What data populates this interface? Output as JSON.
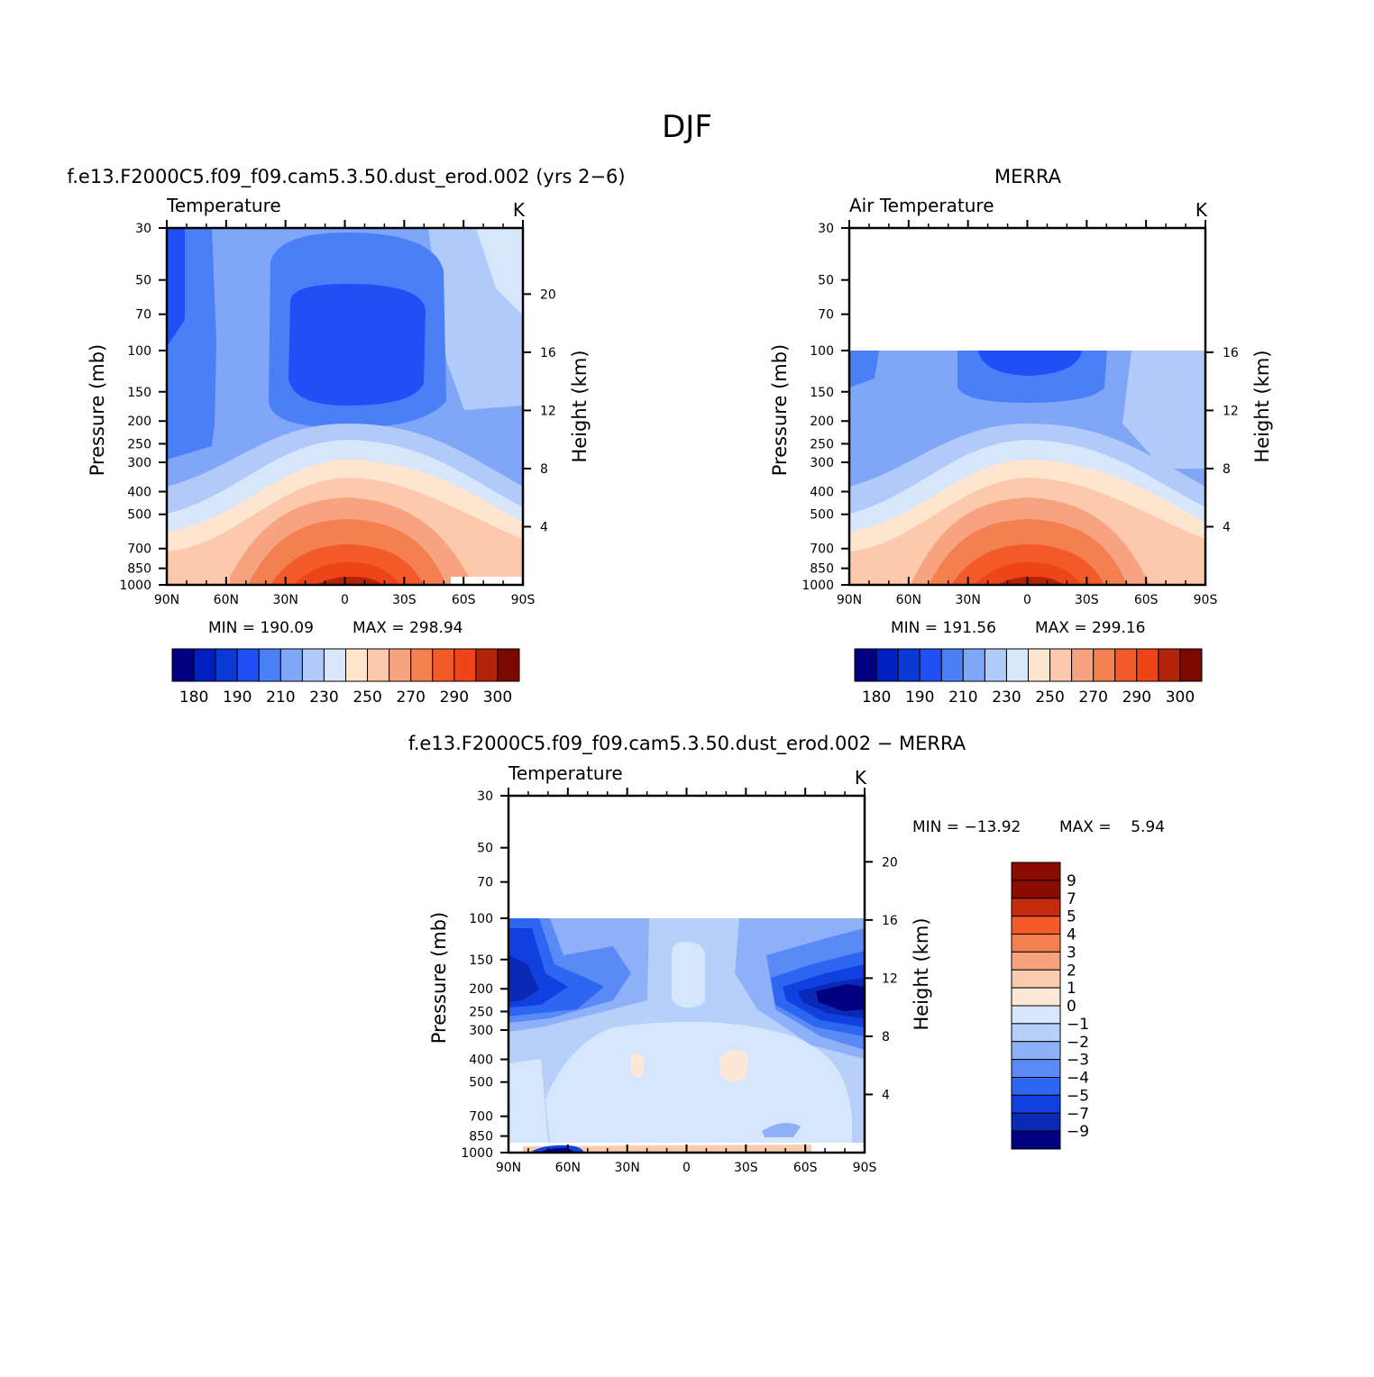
{
  "title": "DJF",
  "colors": {
    "levels": [
      "#000080",
      "#001fbf",
      "#0a39d6",
      "#1f4ff5",
      "#4a7ff5",
      "#7fa6f7",
      "#b1caf9",
      "#d7e6fb",
      "#fde5d0",
      "#fcc9ad",
      "#f7a37f",
      "#f47f51",
      "#f35a2a",
      "#ed4519",
      "#b32309",
      "#7a0a00"
    ],
    "diff_levels": [
      "#000080",
      "#0a2ab5",
      "#1040e0",
      "#2d66f0",
      "#5a8af5",
      "#8eb0f8",
      "#b7d0fa",
      "#d6e6fc",
      "#fde8d8",
      "#fbcbb0",
      "#f7a37f",
      "#f47f51",
      "#f35a2a",
      "#c42a0c",
      "#8a0c00"
    ]
  },
  "chart_data": [
    {
      "type": "heatmap",
      "panel_title": "f.e13.F2000C5.f09_f09.cam5.3.50.dust_erod.002 (yrs 2−6)",
      "variable": "Temperature",
      "units": "K",
      "xlabel": "",
      "ylabel": "Pressure (mb)",
      "ylabel_right": "Height (km)",
      "x_ticks": [
        "90N",
        "60N",
        "30N",
        "0",
        "30S",
        "60S",
        "90S"
      ],
      "y_ticks": [
        "30",
        "50",
        "70",
        "100",
        "150",
        "200",
        "250",
        "300",
        "400",
        "500",
        "700",
        "850",
        "1000"
      ],
      "y_ticks_right": [
        "20",
        "16",
        "12",
        "8",
        "4"
      ],
      "data_top_mb": 30,
      "min_label": "MIN = 190.09",
      "max_label": "MAX = 298.94",
      "min": 190.09,
      "max": 298.94,
      "colorbar_labels": [
        "180",
        "190",
        "210",
        "230",
        "250",
        "270",
        "290",
        "300"
      ]
    },
    {
      "type": "heatmap",
      "panel_title": "MERRA",
      "variable": "Air Temperature",
      "units": "K",
      "xlabel": "",
      "ylabel": "Pressure (mb)",
      "ylabel_right": "Height (km)",
      "x_ticks": [
        "90N",
        "60N",
        "30N",
        "0",
        "30S",
        "60S",
        "90S"
      ],
      "y_ticks": [
        "30",
        "50",
        "70",
        "100",
        "150",
        "200",
        "250",
        "300",
        "400",
        "500",
        "700",
        "850",
        "1000"
      ],
      "y_ticks_right": [
        "16",
        "12",
        "8",
        "4"
      ],
      "data_top_mb": 100,
      "min_label": "MIN = 191.56",
      "max_label": "MAX = 299.16",
      "min": 191.56,
      "max": 299.16,
      "colorbar_labels": [
        "180",
        "190",
        "210",
        "230",
        "250",
        "270",
        "290",
        "300"
      ]
    },
    {
      "type": "heatmap",
      "panel_title": "f.e13.F2000C5.f09_f09.cam5.3.50.dust_erod.002 − MERRA",
      "variable": "Temperature",
      "units": "K",
      "xlabel": "",
      "ylabel": "Pressure (mb)",
      "ylabel_right": "Height (km)",
      "x_ticks": [
        "90N",
        "60N",
        "30N",
        "0",
        "30S",
        "60S",
        "90S"
      ],
      "y_ticks": [
        "30",
        "50",
        "70",
        "100",
        "150",
        "200",
        "250",
        "300",
        "400",
        "500",
        "700",
        "850",
        "1000"
      ],
      "y_ticks_right": [
        "20",
        "16",
        "12",
        "8",
        "4"
      ],
      "data_top_mb": 100,
      "min_label": "MIN = −13.92",
      "max_label": "MAX =    5.94",
      "min": -13.92,
      "max": 5.94,
      "colorbar_labels": [
        "9",
        "7",
        "5",
        "4",
        "3",
        "2",
        "1",
        "0",
        "−1",
        "−2",
        "−3",
        "−4",
        "−5",
        "−7",
        "−9"
      ]
    }
  ]
}
